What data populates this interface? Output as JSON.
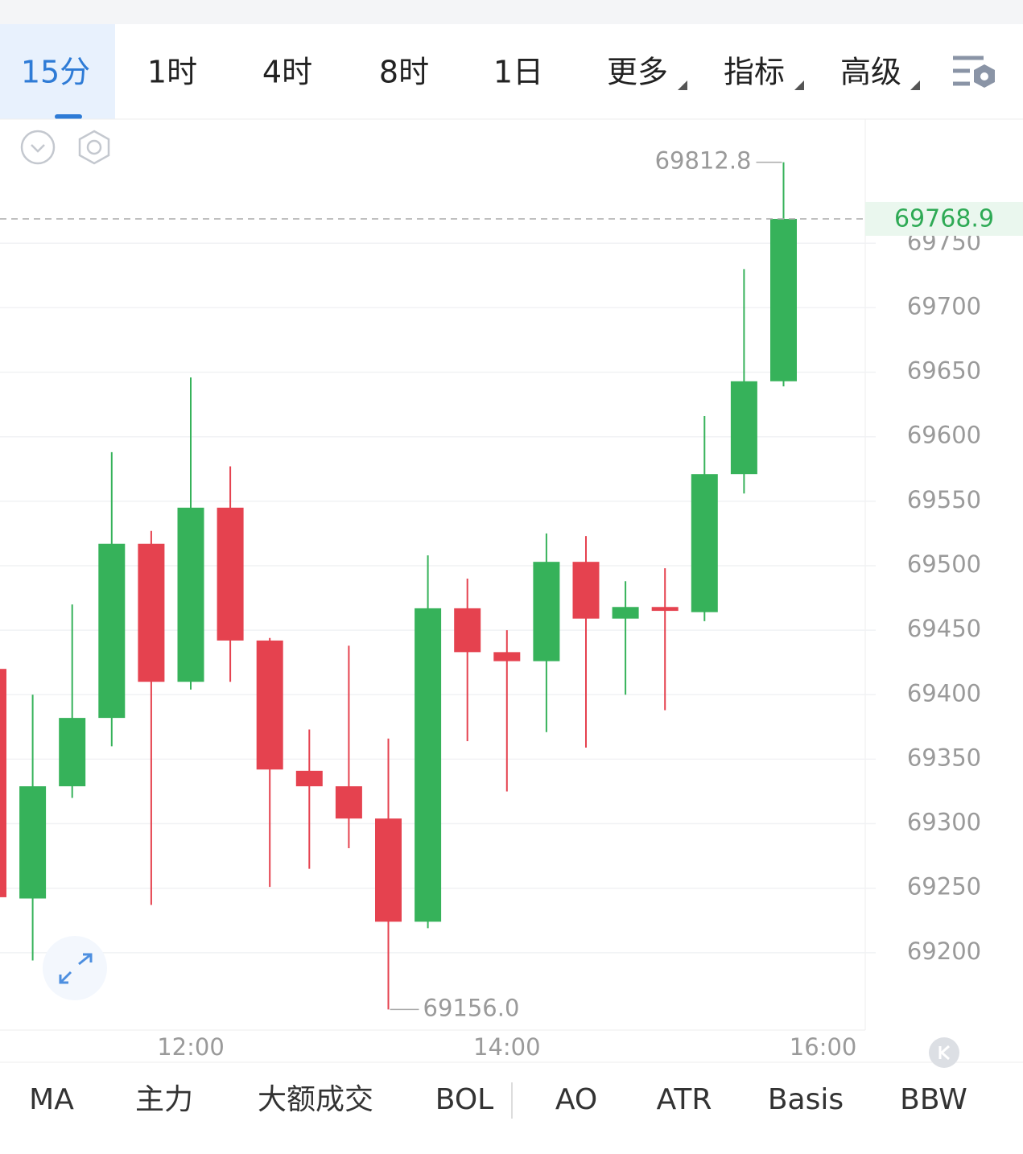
{
  "tabs": [
    "15分",
    "1时",
    "4时",
    "8时",
    "1日",
    "更多",
    "指标",
    "高级"
  ],
  "chart_data": {
    "type": "candlestick",
    "categories": [
      null,
      null,
      null,
      null,
      null,
      "12:00",
      null,
      null,
      null,
      null,
      null,
      null,
      null,
      "14:00",
      null,
      null,
      null,
      null,
      null,
      null,
      null,
      "16:00"
    ],
    "open": [
      69420,
      69242,
      69329,
      69382,
      69517,
      69410,
      69545,
      69442,
      69341,
      69329,
      69304,
      69224,
      69467,
      69433,
      69426,
      69503,
      69459,
      69468,
      69464,
      69571,
      69643,
      null
    ],
    "high": [
      69420,
      69400,
      69470,
      69588,
      69527,
      69646,
      69577,
      69444,
      69373,
      69438,
      69366,
      69508,
      69490,
      69450,
      69525,
      69523,
      69488,
      69498,
      69616,
      69730,
      69812.8,
      null
    ],
    "low": [
      69243,
      69194,
      69320,
      69360,
      69237,
      69404,
      69410,
      69251,
      69265,
      69281,
      69156.0,
      69219,
      69364,
      69325,
      69371,
      69359,
      69400,
      69388,
      69457,
      69556,
      69639,
      null
    ],
    "close": [
      69243,
      69329,
      69382,
      69517,
      69410,
      69545,
      69442,
      69342,
      69329,
      69304,
      69224,
      69467,
      69433,
      69426,
      69503,
      69459,
      69468,
      69465,
      69571,
      69643,
      69768.9,
      null
    ],
    "max_label": "69812.8",
    "min_label": "69156.0",
    "up_color": "#36b25a",
    "down_color": "#e5424f",
    "ylim": [
      69140,
      69845
    ],
    "yticks": [
      69200,
      69250,
      69300,
      69350,
      69400,
      69450,
      69500,
      69550,
      69600,
      69650,
      69700,
      69750
    ],
    "grid": true
  },
  "indicators": [
    "MA",
    "主力",
    "大额成交",
    "BOL",
    "AO",
    "ATR",
    "Basis",
    "BBW"
  ]
}
